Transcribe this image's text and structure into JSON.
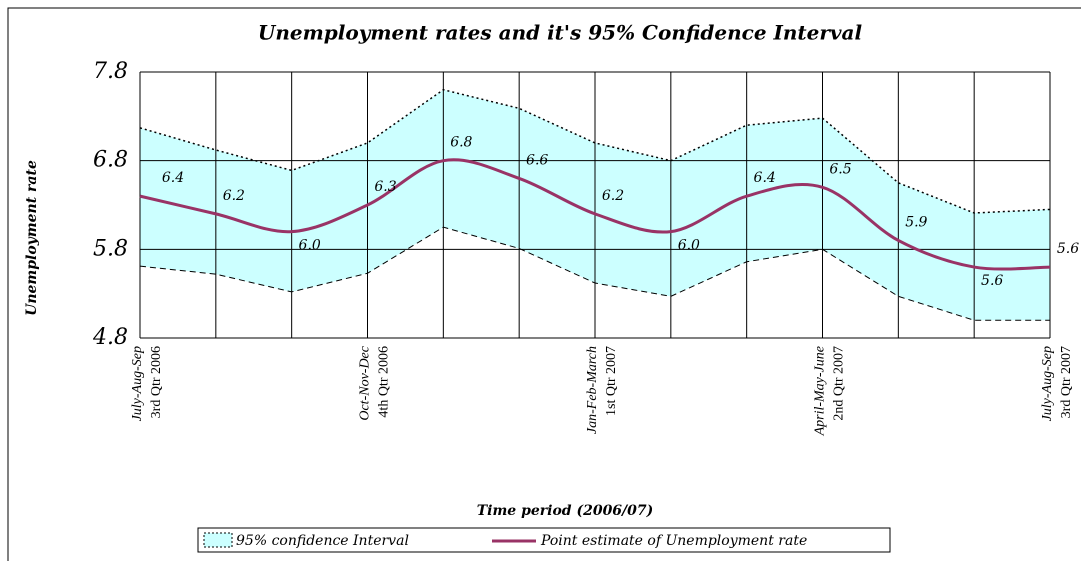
{
  "chart_data": {
    "type": "line",
    "title": "Unemployment rates and it's 95% Confidence Interval",
    "y_label": "Unemployment rate",
    "x_label": "Time period (2006/07)",
    "categories": [
      "July-Aug-Sep",
      null,
      null,
      "Oct-Nov-Dec",
      null,
      null,
      "Jan-Feb-March",
      null,
      null,
      "April-May-June",
      null,
      null,
      "July-Aug-Sep"
    ],
    "quarter_labels": [
      "3rd Qtr 2006",
      null,
      null,
      "4th Qtr 2006",
      null,
      null,
      "1st Qtr 2007",
      null,
      null,
      "2nd Qtr 2007",
      null,
      null,
      "3rd Qtr 2007"
    ],
    "series": [
      {
        "name": "95% confidence Interval",
        "color": "#ccffff",
        "upper": [
          7.17,
          6.92,
          6.69,
          7.0,
          7.6,
          7.39,
          7.0,
          6.8,
          7.2,
          7.28,
          6.55,
          6.21,
          6.25
        ],
        "lower": [
          5.61,
          5.52,
          5.32,
          5.53,
          6.05,
          5.81,
          5.42,
          5.27,
          5.66,
          5.8,
          5.27,
          5.0,
          5.0
        ]
      },
      {
        "name": "Point estimate of Unemployment rate",
        "color": "#993366",
        "values": [
          6.4,
          6.2,
          6.0,
          6.3,
          6.8,
          6.6,
          6.2,
          6.0,
          6.4,
          6.5,
          5.9,
          5.6,
          5.6
        ],
        "value_labels": [
          "6.4",
          "6.2",
          "6.0",
          "6.3",
          "6.8",
          "6.6",
          "6.2",
          "6.0",
          "6.4",
          "6.5",
          "5.9",
          "5.6",
          "5.6"
        ]
      }
    ],
    "ylim": [
      4.8,
      7.8
    ],
    "yticks": [
      4.8,
      5.8,
      6.8,
      7.8
    ],
    "grid": true
  }
}
